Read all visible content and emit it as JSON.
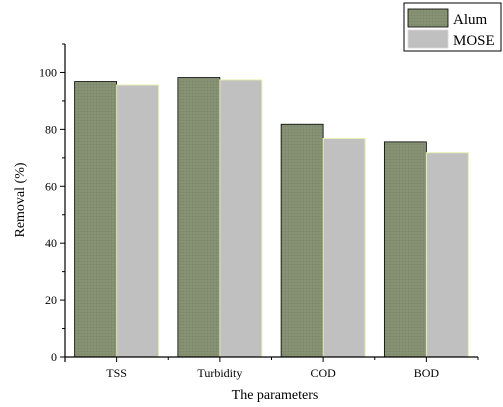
{
  "chart_data": {
    "type": "bar",
    "categories": [
      "TSS",
      "Turbidity",
      "COD",
      "BOD"
    ],
    "series": [
      {
        "name": "Alum",
        "values": [
          96.8,
          98.2,
          81.8,
          75.6
        ],
        "color": "#848f72"
      },
      {
        "name": "MOSE",
        "values": [
          95.6,
          97.4,
          76.8,
          71.8
        ],
        "color": "#c0c0c0"
      }
    ],
    "title": "",
    "xlabel": "The parameters",
    "ylabel": "Removal (%)",
    "ylim": [
      0,
      110
    ],
    "yticks": [
      0,
      20,
      40,
      60,
      80,
      100
    ],
    "grid": false,
    "legend_position": "top-right"
  }
}
